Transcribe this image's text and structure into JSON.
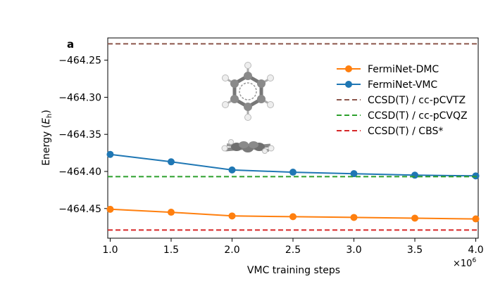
{
  "chart_data": {
    "type": "line",
    "panel_label": "a",
    "xlabel": "VMC training steps",
    "x_multiplier": "×10",
    "x_multiplier_exp": "6",
    "ylabel": "Energy (",
    "ylabel_var": "E",
    "ylabel_sub": "h",
    "ylabel_close": ")",
    "xlim": [
      0.98,
      4.02
    ],
    "ylim": [
      -464.49,
      -464.22
    ],
    "x_ticks": [
      1.0,
      1.5,
      2.0,
      2.5,
      3.0,
      3.5,
      4.0
    ],
    "x_tick_labels": [
      "1.0",
      "1.5",
      "2.0",
      "2.5",
      "3.0",
      "3.5",
      "4.0"
    ],
    "y_ticks": [
      -464.25,
      -464.3,
      -464.35,
      -464.4,
      -464.45
    ],
    "y_tick_labels": [
      "−464.25",
      "−464.30",
      "−464.35",
      "−464.40",
      "−464.45"
    ],
    "grid": false,
    "legend_position": "top-right",
    "series": [
      {
        "name": "FermiNet-DMC",
        "color": "#ff7f0e",
        "style": "solid-markers",
        "x": [
          1.0,
          1.5,
          2.0,
          2.5,
          3.0,
          3.5,
          4.0
        ],
        "y": [
          -464.451,
          -464.455,
          -464.46,
          -464.461,
          -464.462,
          -464.463,
          -464.464
        ]
      },
      {
        "name": "FermiNet-VMC",
        "color": "#1f77b4",
        "style": "solid-markers",
        "x": [
          1.0,
          1.5,
          2.0,
          2.5,
          3.0,
          3.5,
          4.0
        ],
        "y": [
          -464.377,
          -464.387,
          -464.398,
          -464.401,
          -464.403,
          -464.405,
          -464.406
        ]
      },
      {
        "name": "CCSD(T) / cc-pCVTZ",
        "color": "#8c564b",
        "style": "dashed",
        "x": [
          0.98,
          4.02
        ],
        "y": [
          -464.228,
          -464.228
        ]
      },
      {
        "name": "CCSD(T) / cc-pCVQZ",
        "color": "#2ca02c",
        "style": "dashed",
        "x": [
          0.98,
          4.02
        ],
        "y": [
          -464.407,
          -464.407
        ]
      },
      {
        "name": "CCSD(T) / CBS*",
        "color": "#d62728",
        "style": "dashed",
        "x": [
          0.98,
          4.02
        ],
        "y": [
          -464.479,
          -464.479
        ]
      }
    ]
  }
}
